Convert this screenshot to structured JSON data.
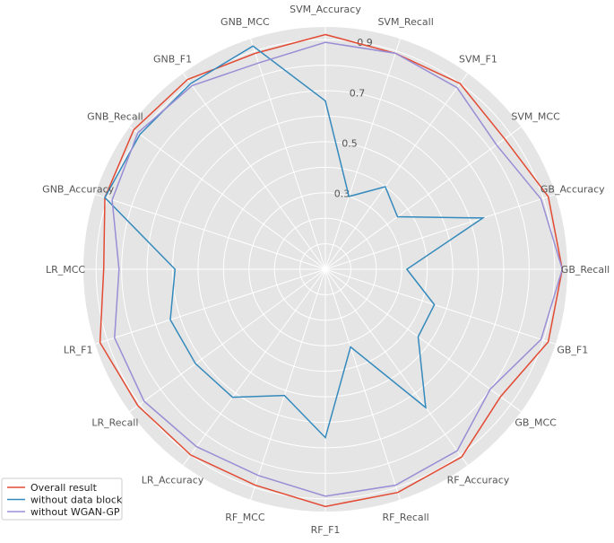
{
  "chart_data": {
    "type": "radar",
    "title": "",
    "categories": [
      "SVM_Accuracy",
      "SVM_Recall",
      "SVM_F1",
      "SVM_MCC",
      "GB_Accuracy",
      "GB_Recall",
      "GB_F1",
      "GB_MCC",
      "RF_Accuracy",
      "RF_Recall",
      "RF_F1",
      "RF_MCC",
      "LR_Accuracy",
      "LR_Recall",
      "LR_F1",
      "LR_MCC",
      "GNB_Accuracy",
      "GNB_Recall",
      "GNB_F1",
      "GNB_MCC"
    ],
    "rlim": [
      0,
      0.95
    ],
    "rticks": [
      0.3,
      0.5,
      0.7,
      0.9
    ],
    "rtick_labels": [
      "0.3",
      "0.5",
      "0.7",
      "0.9"
    ],
    "grid": true,
    "legend_position": "bottom-left",
    "series": [
      {
        "name": "Overall result",
        "color": "#e24a33",
        "values": [
          0.92,
          0.89,
          0.9,
          0.87,
          0.92,
          0.93,
          0.92,
          0.85,
          0.91,
          0.92,
          0.93,
          0.89,
          0.9,
          0.91,
          0.93,
          0.87,
          0.91,
          0.93,
          0.92,
          0.89
        ]
      },
      {
        "name": "without data block",
        "color": "#348abd",
        "values": [
          0.66,
          0.3,
          0.4,
          0.35,
          0.65,
          0.32,
          0.45,
          0.45,
          0.67,
          0.32,
          0.66,
          0.52,
          0.62,
          0.63,
          0.64,
          0.59,
          0.91,
          0.9,
          0.9,
          0.92
        ]
      },
      {
        "name": "without WGAN-GP",
        "color": "#988ed5",
        "values": [
          0.89,
          0.89,
          0.88,
          0.83,
          0.89,
          0.93,
          0.89,
          0.8,
          0.88,
          0.89,
          0.89,
          0.85,
          0.86,
          0.88,
          0.87,
          0.81,
          0.88,
          0.91,
          0.89,
          0.85
        ]
      }
    ]
  }
}
